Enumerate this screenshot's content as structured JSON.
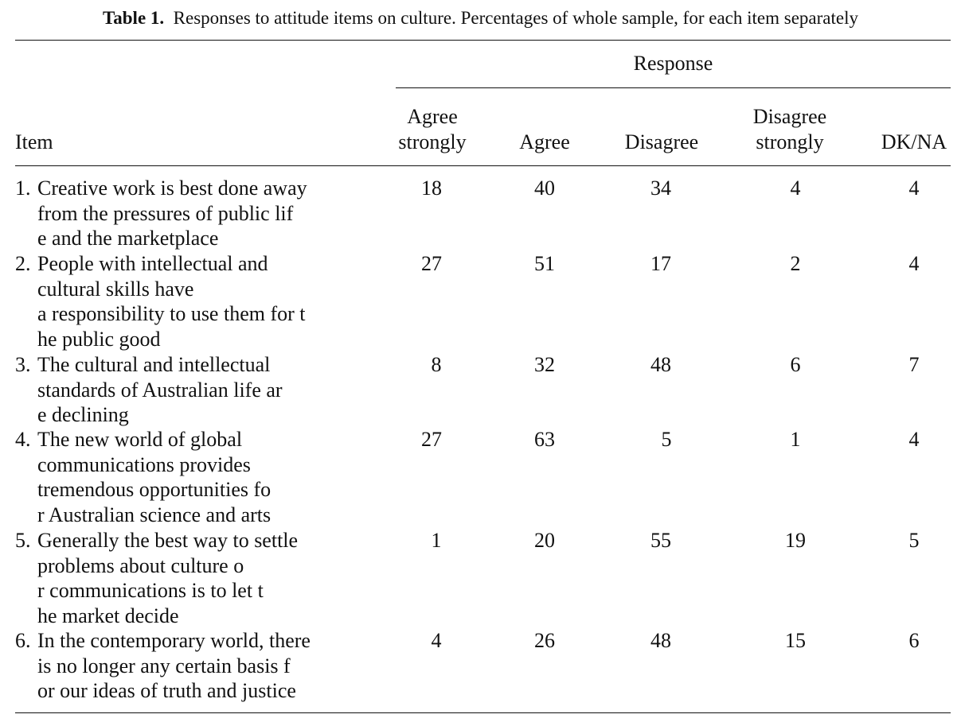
{
  "caption": {
    "label": "Table 1.",
    "text": "Responses to attitude items on culture. Percentages of whole sample, for each item separately"
  },
  "header": {
    "spanner": "Response",
    "item": "Item",
    "columns": [
      {
        "line1": "Agree",
        "line2": "strongly"
      },
      {
        "line1": "",
        "line2": "Agree"
      },
      {
        "line1": "",
        "line2": "Disagree"
      },
      {
        "line1": "Disagree",
        "line2": "strongly"
      },
      {
        "line1": "",
        "line2": "DK/NA"
      }
    ]
  },
  "rows": [
    {
      "num": "1.",
      "text": "Creative work is best done away from the pressures of public life and the marketplace",
      "values": [
        "18",
        "40",
        "34",
        "4",
        "4"
      ]
    },
    {
      "num": "2.",
      "text": "People with intellectual and cultural skills have a responsibility to use them for the public good",
      "values": [
        "27",
        "51",
        "17",
        "2",
        "4"
      ]
    },
    {
      "num": "3.",
      "text": "The cultural and intellectual standards of Australian life are declining",
      "values": [
        "8",
        "32",
        "48",
        "6",
        "7"
      ]
    },
    {
      "num": "4.",
      "text": "The new world of global communications provides tremendous opportunities for Australian science and arts",
      "values": [
        "27",
        "63",
        "5",
        "1",
        "4"
      ]
    },
    {
      "num": "5.",
      "text": "Generally the best way to settle problems about culture or communications is to let the market decide",
      "values": [
        "1",
        "20",
        "55",
        "19",
        "5"
      ]
    },
    {
      "num": "6.",
      "text": "In the contemporary world, there is no longer any certain basis for our ideas of truth and justice",
      "values": [
        "4",
        "26",
        "48",
        "15",
        "6"
      ]
    }
  ]
}
